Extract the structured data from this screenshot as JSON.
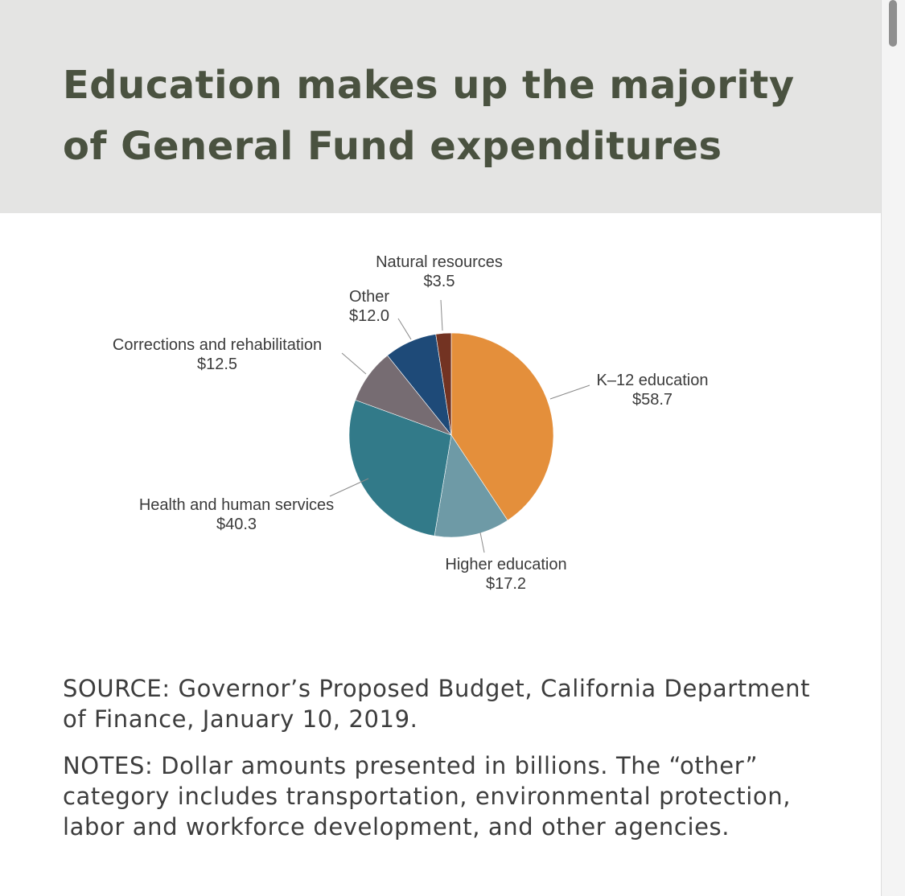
{
  "title_line1": "Education makes up the majority",
  "title_line2": "of General Fund expenditures",
  "chart_data": {
    "type": "pie",
    "slices": [
      {
        "label": "K–12 education",
        "value": 58.7,
        "value_label": "$58.7",
        "color": "#e48f3b"
      },
      {
        "label": "Higher education",
        "value": 17.2,
        "value_label": "$17.2",
        "color": "#6e9aa6"
      },
      {
        "label": "Health and human services",
        "value": 40.3,
        "value_label": "$40.3",
        "color": "#327a89"
      },
      {
        "label": "Corrections and rehabilitation",
        "value": 12.5,
        "value_label": "$12.5",
        "color": "#766c72"
      },
      {
        "label": "Other",
        "value": 12.0,
        "value_label": "$12.0",
        "color": "#1e4a78"
      },
      {
        "label": "Natural resources",
        "value": 3.5,
        "value_label": "$3.5",
        "color": "#733322"
      }
    ],
    "start": "12 o'clock",
    "direction": "clockwise"
  },
  "source_text": "SOURCE: Governor’s Proposed Budget, California Department of Finance, January 10, 2019.",
  "notes_text": "NOTES: Dollar amounts presented in billions. The “other” category includes transportation, environmental protection, labor and workforce development, and other agencies."
}
